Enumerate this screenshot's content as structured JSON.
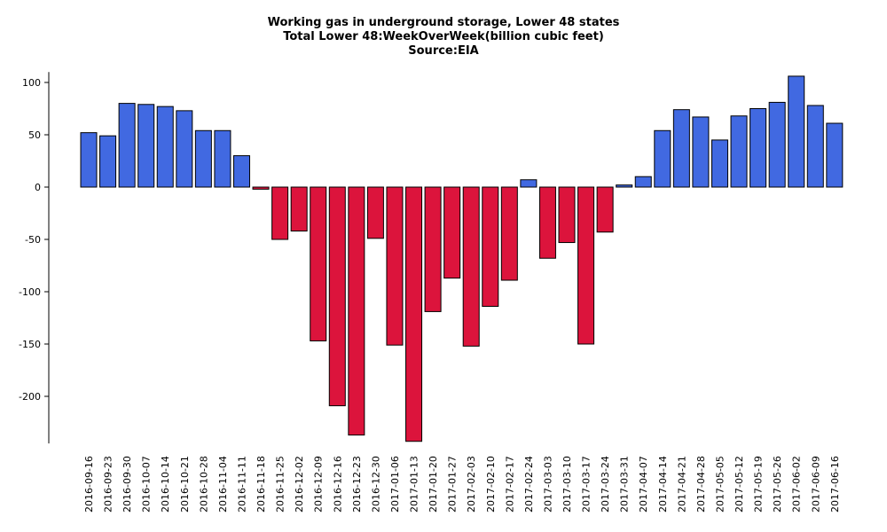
{
  "chart_data": {
    "type": "bar",
    "title": "Working gas in underground storage, Lower 48 states",
    "subtitle": "Total Lower 48:WeekOverWeek(billion cubic feet)",
    "source": "Source:EIA",
    "xlabel": "",
    "ylabel": "",
    "ylim": [
      -245,
      110
    ],
    "yticks": [
      100,
      50,
      0,
      -50,
      -100,
      -150,
      -200
    ],
    "grid": false,
    "colors": {
      "positive": "#4169E1",
      "negative": "#DC143C",
      "edge": "#000000"
    },
    "categories": [
      "2016-09-16",
      "2016-09-23",
      "2016-09-30",
      "2016-10-07",
      "2016-10-14",
      "2016-10-21",
      "2016-10-28",
      "2016-11-04",
      "2016-11-11",
      "2016-11-18",
      "2016-11-25",
      "2016-12-02",
      "2016-12-09",
      "2016-12-16",
      "2016-12-23",
      "2016-12-30",
      "2017-01-06",
      "2017-01-13",
      "2017-01-20",
      "2017-01-27",
      "2017-02-03",
      "2017-02-10",
      "2017-02-17",
      "2017-02-24",
      "2017-03-03",
      "2017-03-10",
      "2017-03-17",
      "2017-03-24",
      "2017-03-31",
      "2017-04-07",
      "2017-04-14",
      "2017-04-21",
      "2017-04-28",
      "2017-05-05",
      "2017-05-12",
      "2017-05-19",
      "2017-05-26",
      "2017-06-02",
      "2017-06-09",
      "2017-06-16"
    ],
    "values": [
      52,
      49,
      80,
      79,
      77,
      73,
      54,
      54,
      30,
      -2,
      -50,
      -42,
      -147,
      -209,
      -237,
      -49,
      -151,
      -243,
      -119,
      -87,
      -152,
      -114,
      -89,
      7,
      -68,
      -53,
      -150,
      -43,
      2,
      10,
      54,
      74,
      67,
      45,
      68,
      75,
      81,
      106,
      78,
      61
    ]
  }
}
